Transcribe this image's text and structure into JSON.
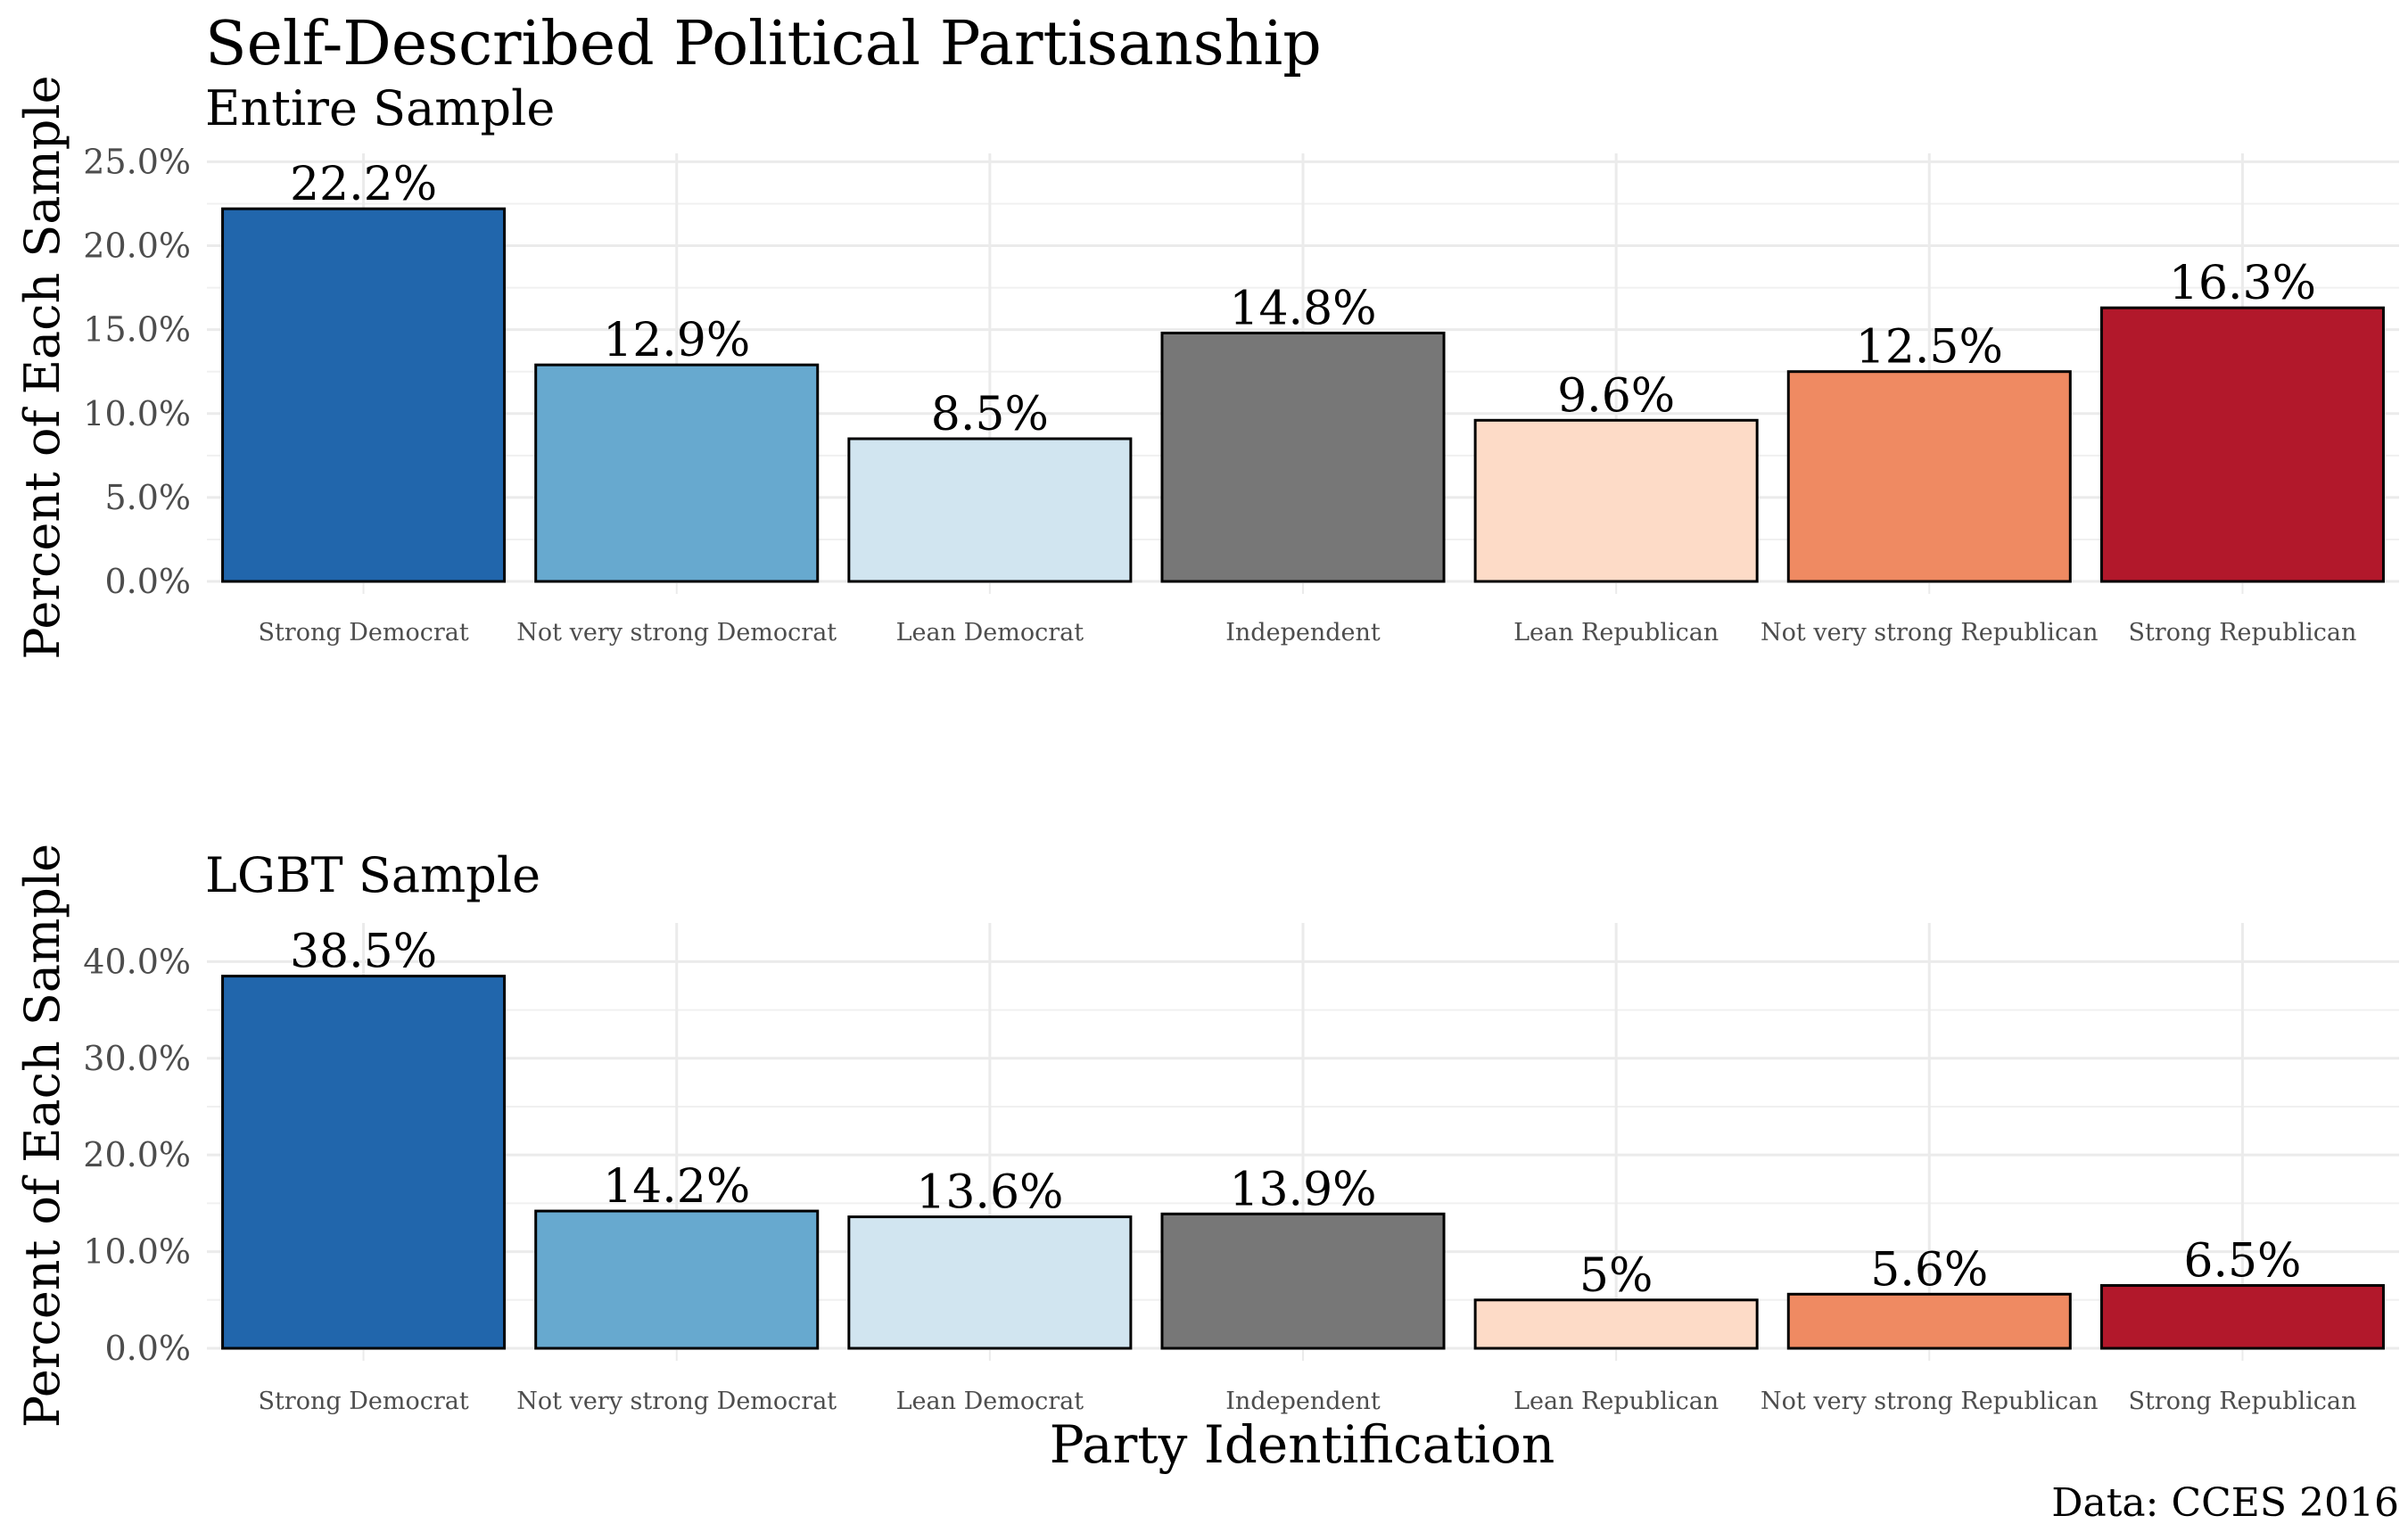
{
  "title": "Self-Described Political Partisanship",
  "xlabel": "Party Identification",
  "caption": "Data: CCES 2016",
  "colors": [
    "#2166ac",
    "#67a9cf",
    "#d1e5f0",
    "#777777",
    "#fddbc7",
    "#ef8a62",
    "#b2182b"
  ],
  "chart_data": [
    {
      "type": "bar",
      "subtitle": "Entire Sample",
      "ylabel": "Percent of Each Sample",
      "categories": [
        "Strong Democrat",
        "Not very strong Democrat",
        "Lean Democrat",
        "Independent",
        "Lean Republican",
        "Not very strong Republican",
        "Strong Republican"
      ],
      "values": [
        22.2,
        12.9,
        8.5,
        14.8,
        9.6,
        12.5,
        16.3
      ],
      "value_labels": [
        "22.2%",
        "12.9%",
        "8.5%",
        "14.8%",
        "9.6%",
        "12.5%",
        "16.3%"
      ],
      "yticks": [
        0,
        5,
        10,
        15,
        20,
        25
      ],
      "ytick_labels": [
        "0.0%",
        "5.0%",
        "10.0%",
        "15.0%",
        "20.0%",
        "25.0%"
      ],
      "ylim": [
        0,
        25.5
      ],
      "grid": true
    },
    {
      "type": "bar",
      "subtitle": "LGBT Sample",
      "ylabel": "Percent of Each Sample",
      "categories": [
        "Strong Democrat",
        "Not very strong Democrat",
        "Lean Democrat",
        "Independent",
        "Lean Republican",
        "Not very strong Republican",
        "Strong Republican"
      ],
      "values": [
        38.5,
        14.2,
        13.6,
        13.9,
        5,
        5.6,
        6.5
      ],
      "value_labels": [
        "38.5%",
        "14.2%",
        "13.6%",
        "13.9%",
        "5%",
        "5.6%",
        "6.5%"
      ],
      "yticks": [
        0,
        10,
        20,
        30,
        40
      ],
      "ytick_labels": [
        "0.0%",
        "10.0%",
        "20.0%",
        "30.0%",
        "40.0%"
      ],
      "ylim": [
        0,
        44
      ],
      "grid": true
    }
  ]
}
